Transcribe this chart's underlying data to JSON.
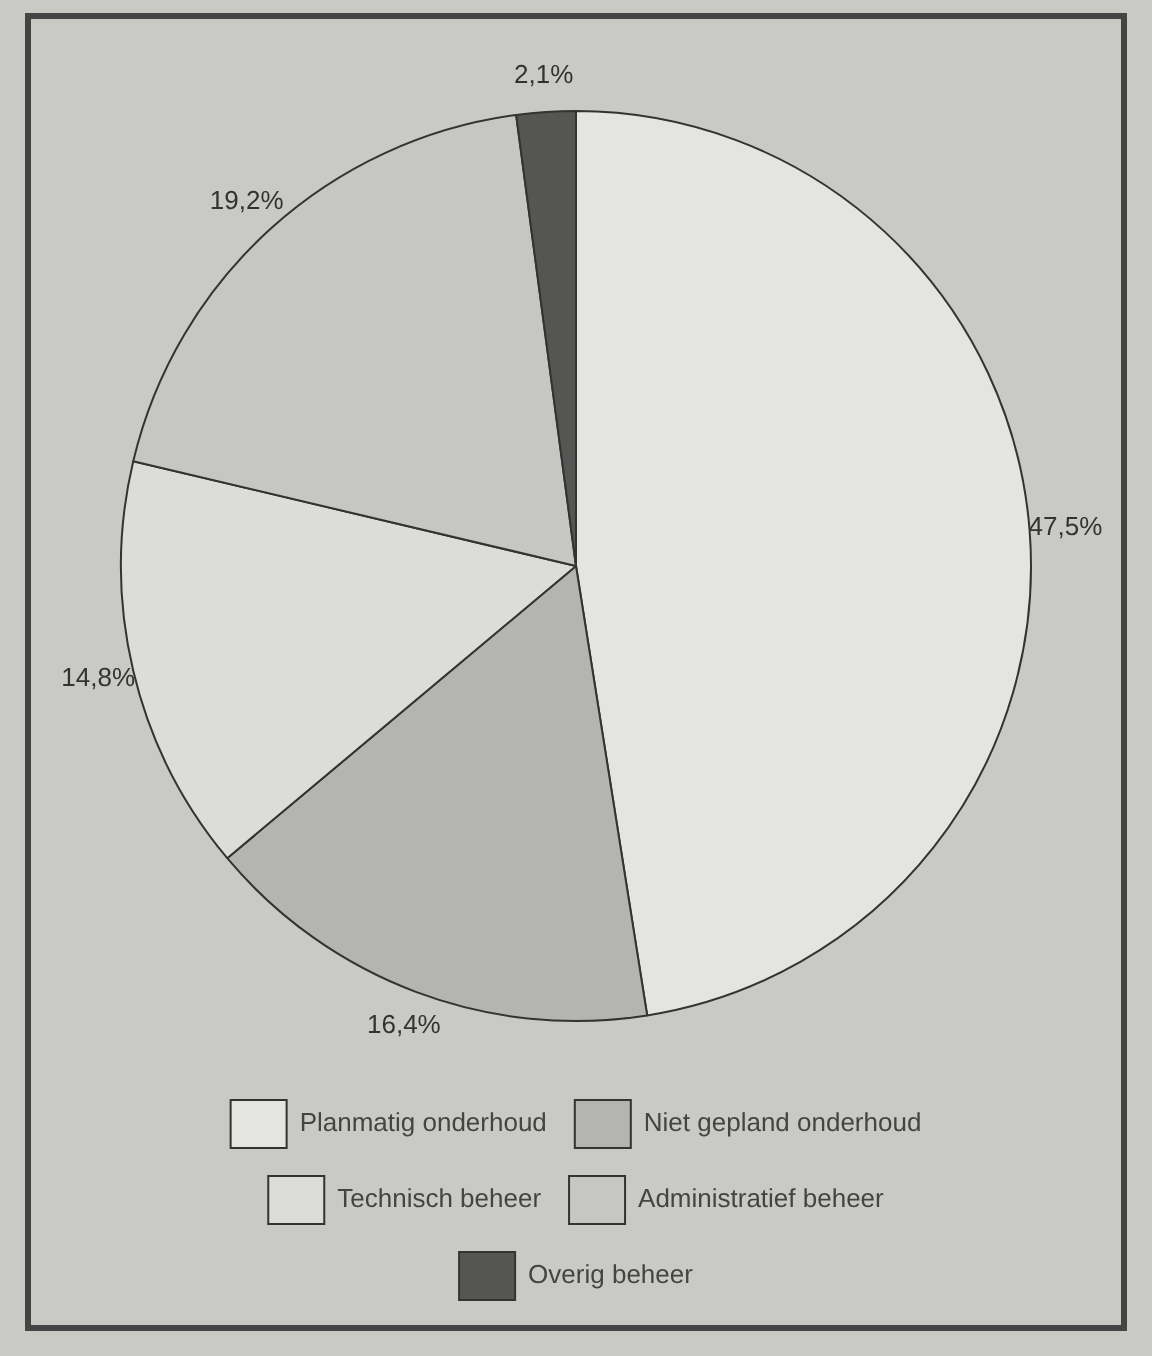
{
  "chart_data": {
    "type": "pie",
    "categories": [
      "Planmatig onderhoud",
      "Niet gepland onderhoud",
      "Technisch beheer",
      "Administratief beheer",
      "Overig beheer"
    ],
    "values": [
      47.5,
      16.4,
      14.8,
      19.2,
      2.1
    ],
    "colors": [
      "#e4e4e0",
      "#b4b4b0",
      "#dcdcd8",
      "#c6c6c2",
      "#555553"
    ],
    "value_labels": [
      "47,5%",
      "16,4%",
      "14,8%",
      "19,2%",
      "2,1%"
    ],
    "legend": "bottom"
  }
}
